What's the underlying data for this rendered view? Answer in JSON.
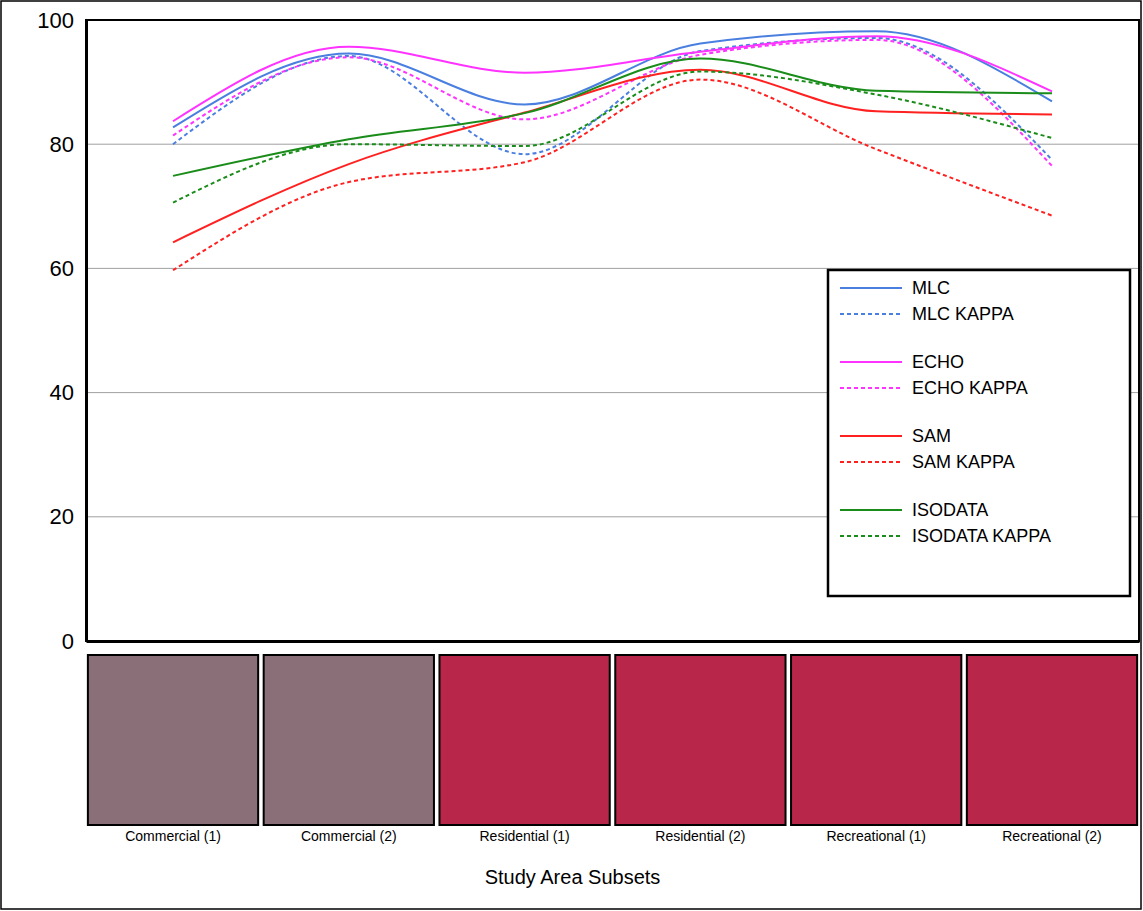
{
  "chart_data": {
    "type": "line",
    "x_label": "Study Area Subsets",
    "categories": [
      "Commercial (1)",
      "Commercial (2)",
      "Residential (1)",
      "Residential (2)",
      "Recreational (1)",
      "Recreational (2)"
    ],
    "series": [
      {
        "name": "MLC",
        "color": "#4a7fe0",
        "line_style": "solid",
        "values": [
          82.7,
          94.6,
          86.4,
          96.2,
          98.2,
          86.9
        ]
      },
      {
        "name": "MLC KAPPA",
        "color": "#4a7fe0",
        "line_style": "dotted",
        "values": [
          80.0,
          94.2,
          78.4,
          95.0,
          97.1,
          77.5
        ]
      },
      {
        "name": "ECHO",
        "color": "#ff33ff",
        "line_style": "solid",
        "values": [
          83.7,
          95.7,
          91.5,
          94.9,
          97.4,
          88.5
        ]
      },
      {
        "name": "ECHO KAPPA",
        "color": "#ff33ff",
        "line_style": "dotted",
        "values": [
          81.4,
          94.0,
          84.0,
          94.4,
          96.8,
          76.5
        ]
      },
      {
        "name": "SAM",
        "color": "#ff2020",
        "line_style": "solid",
        "values": [
          64.2,
          76.8,
          85.1,
          92.0,
          85.3,
          84.8
        ]
      },
      {
        "name": "SAM KAPPA",
        "color": "#ff2020",
        "line_style": "dotted",
        "values": [
          59.7,
          73.9,
          77.1,
          90.4,
          79.2,
          68.5
        ]
      },
      {
        "name": "ISODATA",
        "color": "#1a8c1a",
        "line_style": "solid",
        "values": [
          74.9,
          80.8,
          85.0,
          93.8,
          88.6,
          88.2
        ]
      },
      {
        "name": "ISODATA KAPPA",
        "color": "#1a8c1a",
        "line_style": "dotted",
        "values": [
          70.6,
          80.0,
          79.7,
          91.7,
          88.0,
          81.0
        ]
      }
    ],
    "ylim": [
      0,
      100
    ],
    "yticks": [
      0,
      20,
      40,
      60,
      80,
      100
    ],
    "grid": true,
    "legend": "right"
  }
}
